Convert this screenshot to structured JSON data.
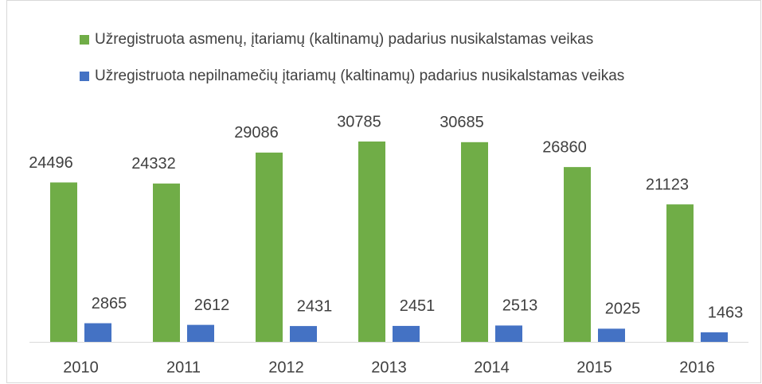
{
  "chart_data": {
    "type": "bar",
    "categories": [
      "2010",
      "2011",
      "2012",
      "2013",
      "2014",
      "2015",
      "2016"
    ],
    "series": [
      {
        "name": "Užregistruota asmenų, įtariamų (kaltinamų) padarius nusikalstamas veikas",
        "color": "#70ad47",
        "values": [
          24496,
          24332,
          29086,
          30785,
          30685,
          26860,
          21123
        ]
      },
      {
        "name": "Užregistruota nepilnamečių įtariamų (kaltinamų) padarius nusikalstamas veikas",
        "color": "#4472c4",
        "values": [
          2865,
          2612,
          2431,
          2451,
          2513,
          2025,
          1463
        ]
      }
    ]
  }
}
